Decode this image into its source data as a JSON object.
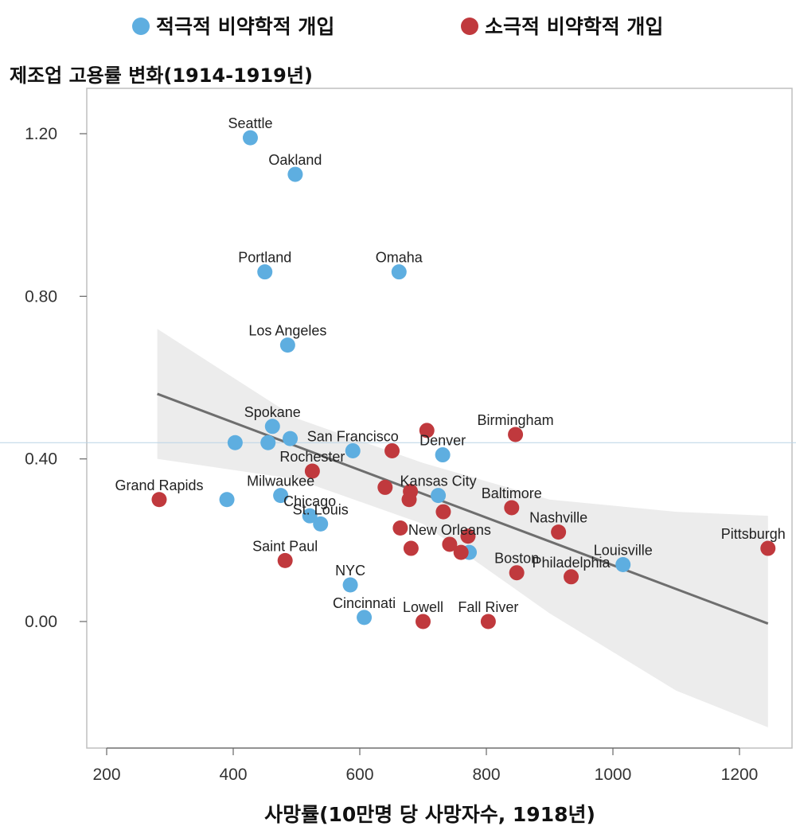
{
  "chart_data": {
    "type": "scatter",
    "title": "",
    "ylabel": "제조업 고용률 변화(1914-1919년)",
    "xlabel": "사망률(10만명 당 사망자수, 1918년)",
    "xlim": [
      180,
      1260
    ],
    "ylim": [
      -0.3,
      1.3
    ],
    "xticks": [
      200,
      400,
      600,
      800,
      1000,
      1200
    ],
    "xtick_labels": [
      "200",
      "400",
      "600",
      "800",
      "1000",
      "1200"
    ],
    "yticks": [
      1.2,
      0.8,
      0.4,
      0.0
    ],
    "ytick_labels": [
      "1.20",
      "0.80",
      "0.40",
      "0.00"
    ],
    "reference_line_y": 0.44,
    "trend_line": {
      "x": [
        280,
        1245
      ],
      "y": [
        0.56,
        -0.005
      ]
    },
    "confidence_band": {
      "x": [
        280,
        500,
        700,
        900,
        1100,
        1245
      ],
      "upper": [
        0.72,
        0.5,
        0.39,
        0.3,
        0.27,
        0.26
      ],
      "lower": [
        0.4,
        0.35,
        0.24,
        0.02,
        -0.17,
        -0.26
      ]
    },
    "legend": [
      {
        "name": "적극적 비약학적 개입",
        "color": "#5eaee0"
      },
      {
        "name": "소극적 비약학적 개입",
        "color": "#c0393d"
      }
    ],
    "series": [
      {
        "name": "적극적 비약학적 개입",
        "color": "#5eaee0",
        "points": [
          {
            "label": "Seattle",
            "x": 427,
            "y": 1.19
          },
          {
            "label": "Oakland",
            "x": 498,
            "y": 1.1
          },
          {
            "label": "Portland",
            "x": 450,
            "y": 0.86
          },
          {
            "label": "Omaha",
            "x": 662,
            "y": 0.86
          },
          {
            "label": "Los Angeles",
            "x": 486,
            "y": 0.68
          },
          {
            "label": "Spokane",
            "x": 462,
            "y": 0.48
          },
          {
            "label": "",
            "x": 403,
            "y": 0.44
          },
          {
            "label": "",
            "x": 455,
            "y": 0.44
          },
          {
            "label": "",
            "x": 490,
            "y": 0.45
          },
          {
            "label": "San Francisco",
            "x": 589,
            "y": 0.42
          },
          {
            "label": "Denver",
            "x": 731,
            "y": 0.41
          },
          {
            "label": "",
            "x": 390,
            "y": 0.3
          },
          {
            "label": "Milwaukee",
            "x": 475,
            "y": 0.31
          },
          {
            "label": "Kansas City",
            "x": 724,
            "y": 0.31
          },
          {
            "label": "Chicago",
            "x": 521,
            "y": 0.26
          },
          {
            "label": "St. Louis",
            "x": 538,
            "y": 0.24
          },
          {
            "label": "",
            "x": 773,
            "y": 0.17
          },
          {
            "label": "Louisville",
            "x": 1016,
            "y": 0.14
          },
          {
            "label": "NYC",
            "x": 585,
            "y": 0.09
          },
          {
            "label": "Cincinnati",
            "x": 607,
            "y": 0.01
          }
        ]
      },
      {
        "name": "소극적 비약학적 개입",
        "color": "#c0393d",
        "points": [
          {
            "label": "Birmingham",
            "x": 846,
            "y": 0.46
          },
          {
            "label": "",
            "x": 706,
            "y": 0.47
          },
          {
            "label": "",
            "x": 651,
            "y": 0.42
          },
          {
            "label": "Rochester",
            "x": 525,
            "y": 0.37
          },
          {
            "label": "Grand Rapids",
            "x": 283,
            "y": 0.3
          },
          {
            "label": "",
            "x": 640,
            "y": 0.33
          },
          {
            "label": "",
            "x": 680,
            "y": 0.32
          },
          {
            "label": "",
            "x": 678,
            "y": 0.3
          },
          {
            "label": "",
            "x": 732,
            "y": 0.27
          },
          {
            "label": "Baltimore",
            "x": 840,
            "y": 0.28
          },
          {
            "label": "Nashville",
            "x": 914,
            "y": 0.22
          },
          {
            "label": "",
            "x": 664,
            "y": 0.23
          },
          {
            "label": "New Orleans",
            "x": 742,
            "y": 0.19
          },
          {
            "label": "",
            "x": 771,
            "y": 0.21
          },
          {
            "label": "",
            "x": 760,
            "y": 0.17
          },
          {
            "label": "",
            "x": 681,
            "y": 0.18
          },
          {
            "label": "Pittsburgh",
            "x": 1245,
            "y": 0.18
          },
          {
            "label": "Saint Paul",
            "x": 482,
            "y": 0.15
          },
          {
            "label": "Boston",
            "x": 848,
            "y": 0.12
          },
          {
            "label": "Philadelphia",
            "x": 934,
            "y": 0.11
          },
          {
            "label": "Lowell",
            "x": 700,
            "y": 0.0
          },
          {
            "label": "Fall River",
            "x": 803,
            "y": 0.0
          }
        ]
      }
    ]
  }
}
